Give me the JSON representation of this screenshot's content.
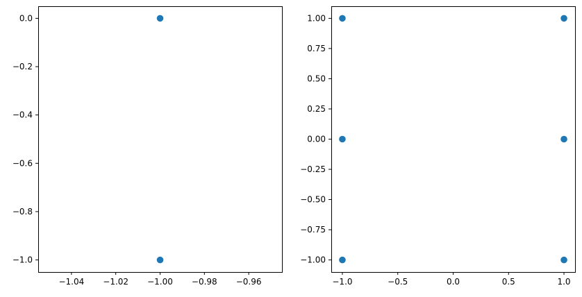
{
  "chart_data": [
    {
      "type": "scatter",
      "marker_color": "#1f77b4",
      "points": [
        {
          "x": -1,
          "y": 0
        },
        {
          "x": -1,
          "y": -1
        }
      ],
      "xlim": [
        -1.055,
        -0.945
      ],
      "ylim": [
        -1.05,
        0.05
      ],
      "xticks": [
        -1.04,
        -1.02,
        -1.0,
        -0.98,
        -0.96
      ],
      "xtick_labels": [
        "−1.04",
        "−1.02",
        "−1.00",
        "−0.98",
        "−0.96"
      ],
      "yticks": [
        0,
        -0.2,
        -0.4,
        -0.6,
        -0.8,
        -1.0
      ],
      "ytick_labels": [
        "0.0",
        "−0.2",
        "−0.4",
        "−0.6",
        "−0.8",
        "−1.0"
      ],
      "grid": false
    },
    {
      "type": "scatter",
      "marker_color": "#1f77b4",
      "points": [
        {
          "x": -1,
          "y": 1
        },
        {
          "x": 1,
          "y": 1
        },
        {
          "x": -1,
          "y": 0
        },
        {
          "x": 1,
          "y": 0
        },
        {
          "x": -1,
          "y": -1
        },
        {
          "x": 1,
          "y": -1
        }
      ],
      "xlim": [
        -1.1,
        1.1
      ],
      "ylim": [
        -1.1,
        1.1
      ],
      "xticks": [
        -1.0,
        -0.5,
        0.0,
        0.5,
        1.0
      ],
      "xtick_labels": [
        "−1.0",
        "−0.5",
        "0.0",
        "0.5",
        "1.0"
      ],
      "yticks": [
        1.0,
        0.75,
        0.5,
        0.25,
        0.0,
        -0.25,
        -0.5,
        -0.75,
        -1.0
      ],
      "ytick_labels": [
        "1.00",
        "0.75",
        "0.50",
        "0.25",
        "0.00",
        "−0.25",
        "−0.50",
        "−0.75",
        "−1.00"
      ],
      "grid": false
    }
  ]
}
